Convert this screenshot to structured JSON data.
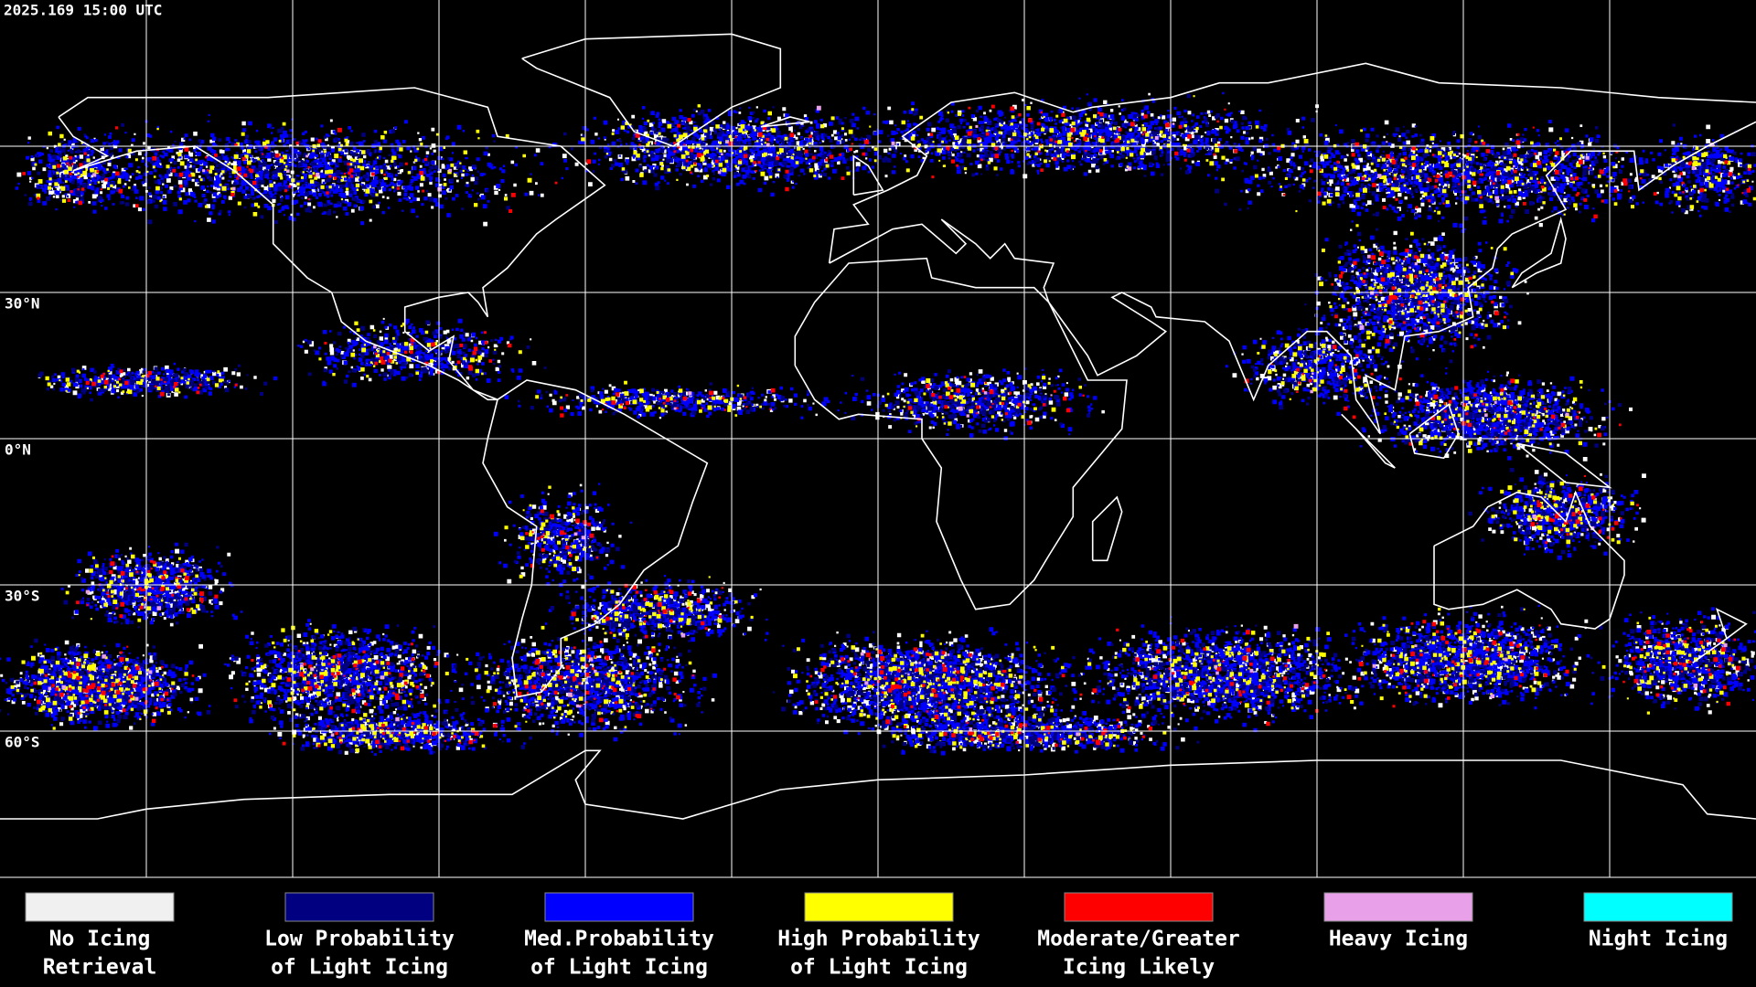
{
  "header": {
    "timestamp": "2025.169 15:00 UTC"
  },
  "latitude_labels": [
    "30°N",
    "0°N",
    "30°S",
    "60°S"
  ],
  "legend": [
    {
      "label": [
        "No Icing",
        "Retrieval"
      ],
      "color": "#f0f0f0"
    },
    {
      "label": [
        "Low Probability",
        "of Light Icing"
      ],
      "color": "#000080"
    },
    {
      "label": [
        "Med.Probability",
        "of Light Icing"
      ],
      "color": "#0000ff"
    },
    {
      "label": [
        "High Probability",
        "of Light Icing"
      ],
      "color": "#ffff00"
    },
    {
      "label": [
        "Moderate/Greater",
        "Icing Likely"
      ],
      "color": "#ff0000"
    },
    {
      "label": [
        "Heavy Icing"
      ],
      "color": "#e8a0e8"
    },
    {
      "label": [
        "Night Icing"
      ],
      "color": "#00ffff"
    }
  ]
}
